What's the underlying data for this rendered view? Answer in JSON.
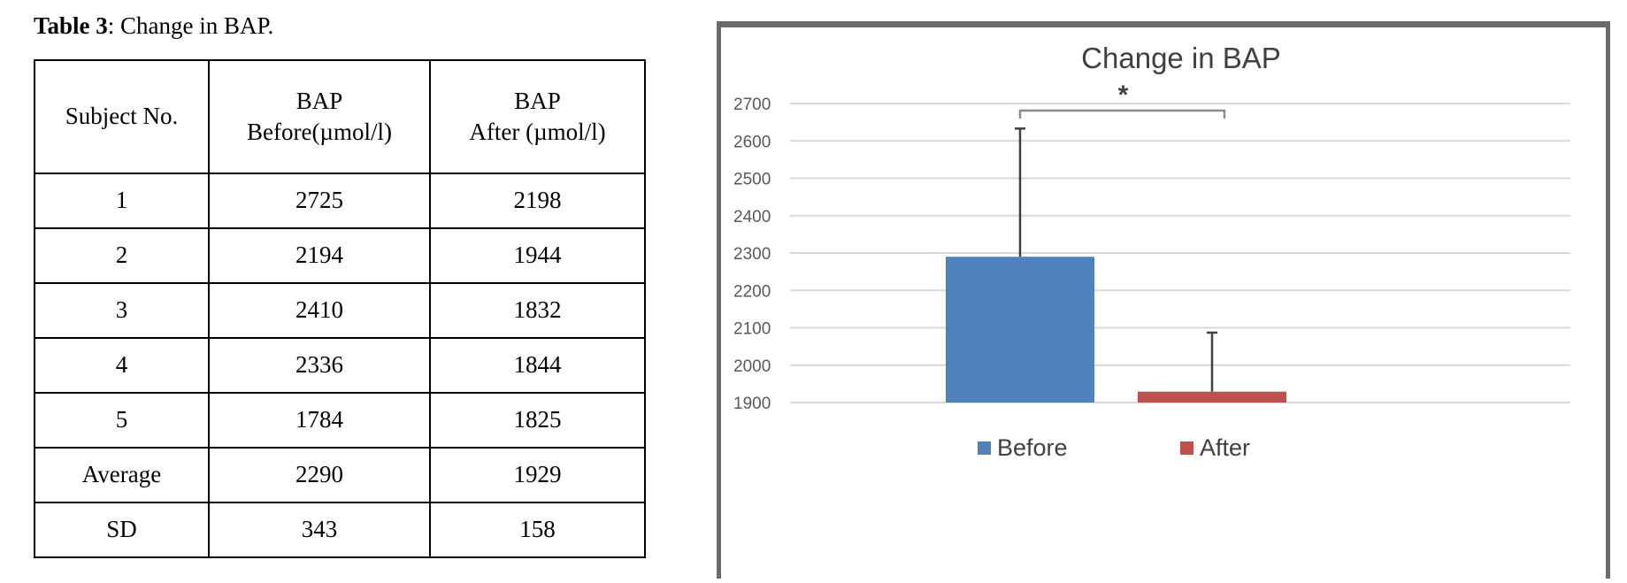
{
  "caption": {
    "label": "Table 3",
    "text": ": Change in BAP."
  },
  "table": {
    "headers": [
      [
        "Subject No."
      ],
      [
        "BAP",
        "Before(µmol/l)"
      ],
      [
        "BAP",
        "After (µmol/l)"
      ]
    ],
    "rows": [
      [
        "1",
        "2725",
        "2198"
      ],
      [
        "2",
        "2194",
        "1944"
      ],
      [
        "3",
        "2410",
        "1832"
      ],
      [
        "4",
        "2336",
        "1844"
      ],
      [
        "5",
        "1784",
        "1825"
      ],
      [
        "Average",
        "2290",
        "1929"
      ],
      [
        "SD",
        "343",
        "158"
      ]
    ]
  },
  "chart_data": {
    "type": "bar",
    "title": "Change in BAP",
    "categories": [
      "Before",
      "After"
    ],
    "values": [
      2290,
      1929
    ],
    "error": [
      343,
      158
    ],
    "colors": [
      "#4f81bd",
      "#c0504d"
    ],
    "ylim": [
      1900,
      2700
    ],
    "yticks": [
      "1900",
      "2000",
      "2100",
      "2200",
      "2300",
      "2400",
      "2500",
      "2600",
      "2700"
    ],
    "grid": true,
    "legend": "bottom",
    "annotation": "*"
  }
}
